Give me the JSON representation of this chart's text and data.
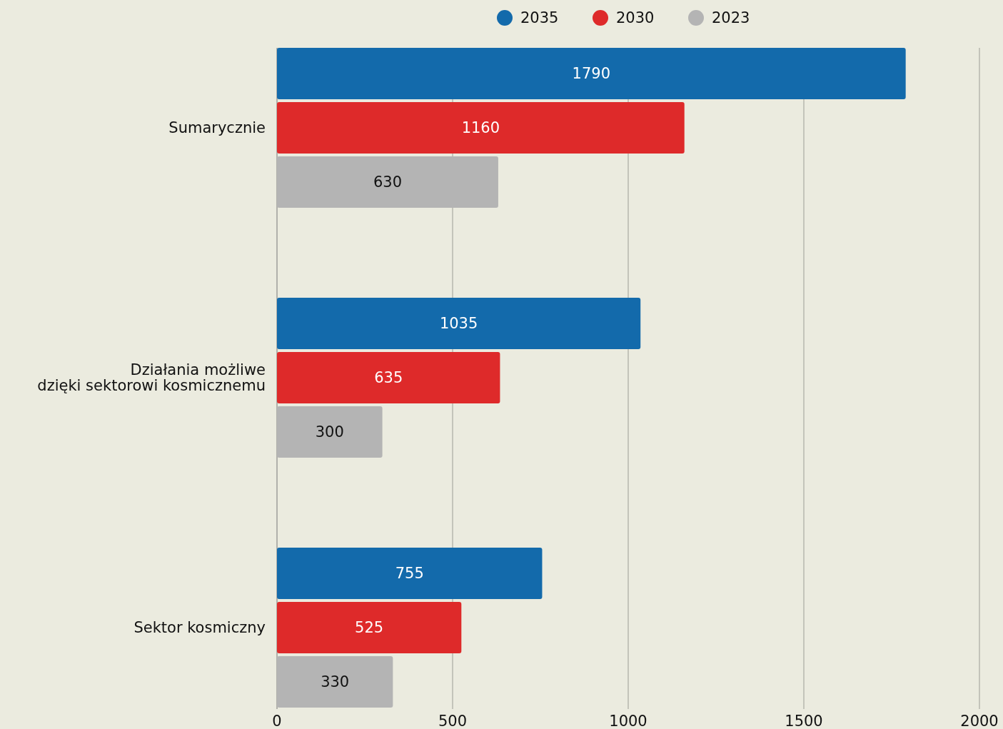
{
  "chart_data": {
    "type": "bar",
    "orientation": "horizontal",
    "categories": [
      "Sumarycznie",
      "Działania możliwe\ndzięki sektorowi kosmicznemu",
      "Sektor kosmiczny"
    ],
    "series": [
      {
        "name": "2035",
        "color": "#136aab",
        "values": [
          1790,
          1035,
          755
        ]
      },
      {
        "name": "2030",
        "color": "#de2a2a",
        "values": [
          1160,
          635,
          525
        ]
      },
      {
        "name": "2023",
        "color": "#b4b4b4",
        "values": [
          630,
          300,
          330
        ]
      }
    ],
    "xlim": [
      0,
      2000
    ],
    "xticks": [
      0,
      500,
      1000,
      1500,
      2000
    ],
    "grid": "x",
    "legend": "top",
    "data_labels": true
  }
}
